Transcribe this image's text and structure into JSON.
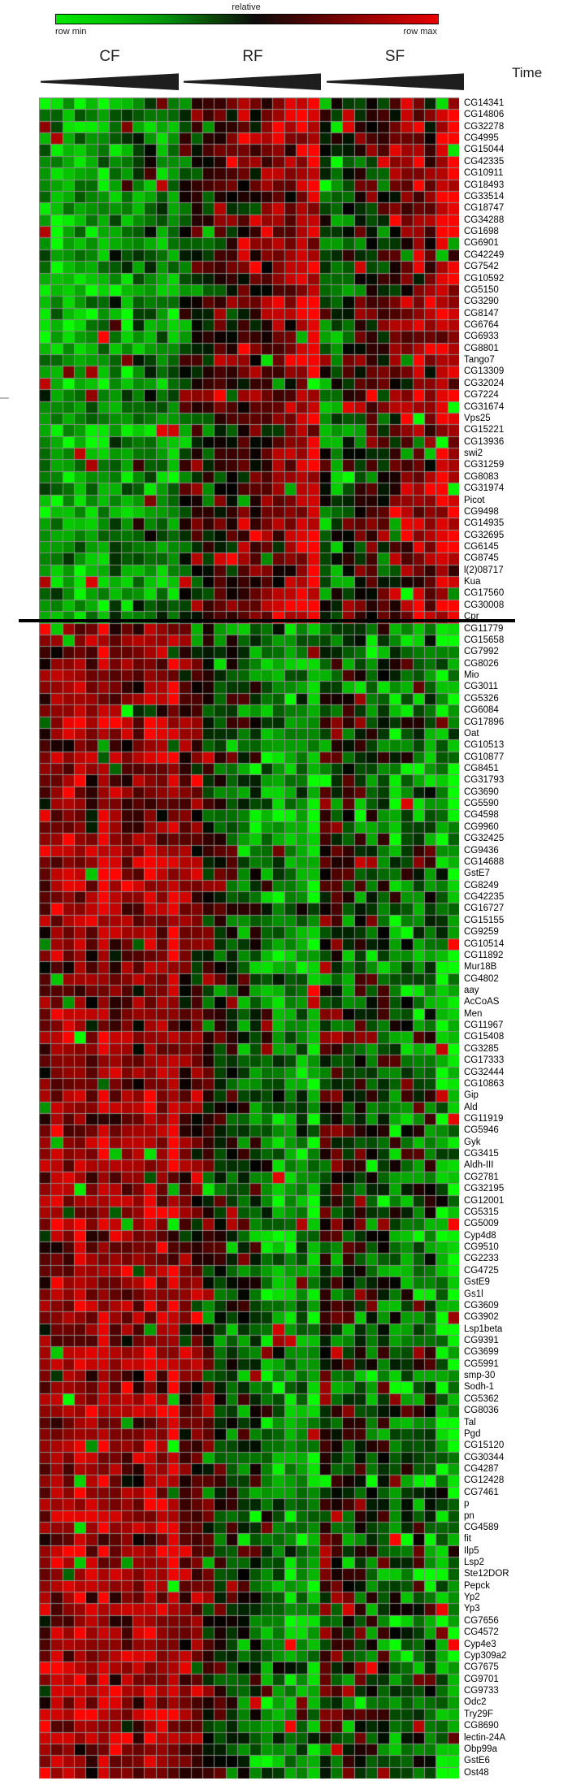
{
  "legend": {
    "title": "relative",
    "min_label": "row min",
    "max_label": "row max"
  },
  "time_axis": {
    "label": "Time"
  },
  "chart_data": {
    "type": "heatmap",
    "description": "Two-way clustered gene-expression heatmap; rows = genes, columns = 36 time-course samples in 3 diet conditions (12 time points each, time increasing left to right as shown by wedges). Colors are row-relative: green = row min, red = row max. A black line separates the two row clusters (up-regulated cluster above, down-regulated cluster below).",
    "color_scale": {
      "low": "#00e800",
      "mid": "#000000",
      "high": "#e80000",
      "low_label": "row min",
      "high_label": "row max"
    },
    "column_groups": [
      {
        "name": "CF",
        "n_cols": 12
      },
      {
        "name": "RF",
        "n_cols": 12
      },
      {
        "name": "SF",
        "n_cols": 12
      }
    ],
    "grid_color": "#8a8a8a",
    "separator_after_row": "Cpr",
    "clusters": [
      {
        "name": "cluster-1-top",
        "row_range": [
          0,
          44
        ],
        "pattern": {
          "CF": {
            "start": -0.58,
            "end": -0.5,
            "noise": 0.3
          },
          "RF": {
            "start": -0.12,
            "end": 0.72,
            "noise": 0.35
          },
          "SF": {
            "start": -0.32,
            "end": 0.72,
            "noise": 0.4
          }
        }
      },
      {
        "name": "cluster-2-bottom",
        "row_range": [
          45,
          143
        ],
        "pattern": {
          "CF": {
            "start": 0.52,
            "end": 0.62,
            "noise": 0.32
          },
          "RF": {
            "start": 0.3,
            "end": -0.62,
            "noise": 0.35
          },
          "SF": {
            "start": 0.05,
            "end": -0.62,
            "noise": 0.45
          }
        }
      }
    ],
    "rows": [
      "CG14341",
      "CG14806",
      "CG32278",
      "CG4995",
      "CG15044",
      "CG42335",
      "CG10911",
      "CG18493",
      "CG33514",
      "CG18747",
      "CG34288",
      "CG1698",
      "CG6901",
      "CG42249",
      "CG7542",
      "CG10592",
      "CG5150",
      "CG3290",
      "CG8147",
      "CG6764",
      "CG6933",
      "CG8801",
      "Tango7",
      "CG13309",
      "CG32024",
      "CG7224",
      "CG31674",
      "Vps25",
      "CG15221",
      "CG13936",
      "swi2",
      "CG31259",
      "CG8083",
      "CG31974",
      "Picot",
      "CG9498",
      "CG14935",
      "CG32695",
      "CG6145",
      "CG8745",
      "l(2)08717",
      "Kua",
      "CG17560",
      "CG30008",
      "Cpr",
      "CG11779",
      "CG15658",
      "CG7992",
      "CG8026",
      "Mio",
      "CG3011",
      "CG5326",
      "CG6084",
      "CG17896",
      "Oat",
      "CG10513",
      "CG10877",
      "CG8451",
      "CG31793",
      "CG3690",
      "CG5590",
      "CG4598",
      "CG9960",
      "CG32425",
      "CG9436",
      "CG14688",
      "GstE7",
      "CG8249",
      "CG42235",
      "CG16727",
      "CG15155",
      "CG9259",
      "CG10514",
      "CG11892",
      "Mur18B",
      "CG4802",
      "aay",
      "AcCoAS",
      "Men",
      "CG11967",
      "CG15408",
      "CG3285",
      "CG17333",
      "CG32444",
      "CG10863",
      "Gip",
      "Ald",
      "CG11919",
      "CG5946",
      "Gyk",
      "CG3415",
      "Aldh-III",
      "CG2781",
      "CG32195",
      "CG12001",
      "CG5315",
      "CG5009",
      "Cyp4d8",
      "CG9510",
      "CG2233",
      "CG4725",
      "GstE9",
      "Gs1l",
      "CG3609",
      "CG3902",
      "Lsp1beta",
      "CG9391",
      "CG3699",
      "CG5991",
      "smp-30",
      "Sodh-1",
      "CG5362",
      "CG8036",
      "Tal",
      "Pgd",
      "CG15120",
      "CG30344",
      "CG4287",
      "CG12428",
      "CG7461",
      "p",
      "pn",
      "CG4589",
      "fit",
      "Ilp5",
      "Lsp2",
      "Ste12DOR",
      "Pepck",
      "Yp2",
      "Yp3",
      "CG7656",
      "CG4572",
      "Cyp4e3",
      "Cyp309a2",
      "CG7675",
      "CG9701",
      "CG9733",
      "Odc2",
      "Try29F",
      "CG8690",
      "lectin-24A",
      "Obp99a",
      "GstE6",
      "Ost48"
    ],
    "layout": {
      "rng_seed": 20240517
    }
  }
}
